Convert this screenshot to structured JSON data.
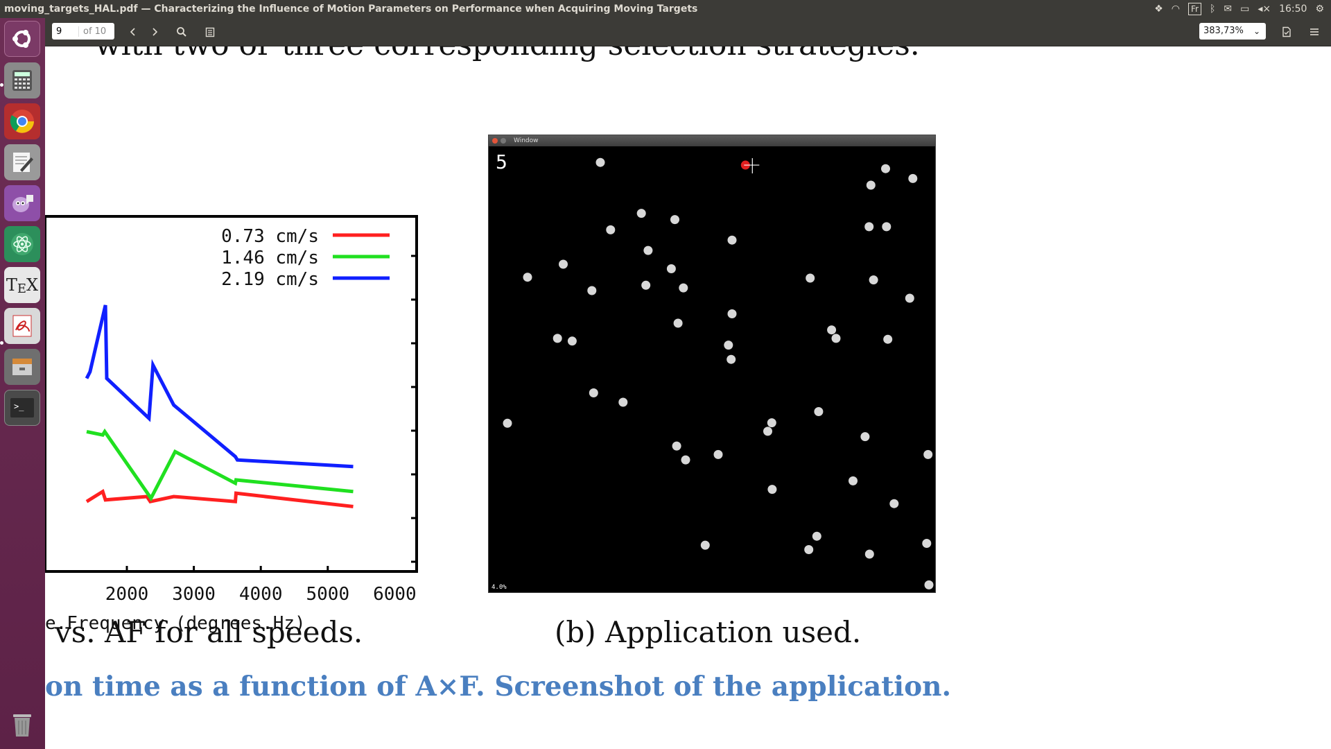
{
  "window": {
    "title": "moving_targets_HAL.pdf — Characterizing the Influence of Motion Parameters on Performance when Acquiring Moving Targets"
  },
  "indicators": {
    "keyboard": "Fr",
    "clock": "16:50"
  },
  "toolbar": {
    "page_current": "9",
    "page_total": "of 10",
    "zoom": "383,73%"
  },
  "launcher": {
    "items": [
      "ubuntu-dash",
      "calculator",
      "chrome",
      "text-editor",
      "pidgin",
      "atom",
      "texmaker",
      "pdf-reader",
      "file-archive",
      "terminal",
      "trash"
    ]
  },
  "document": {
    "line_top": "with two or three corresponding selection strategies.",
    "caption_a": "vs. AF for all speeds.",
    "caption_b": "(b) Application used.",
    "caption_main": "on time as a function of A×F. Screenshot of the application."
  },
  "chart_data": {
    "type": "line",
    "xlabel": "e.Frequency (degrees.Hz)",
    "x_ticks": [
      "2000",
      "3000",
      "4000",
      "5000",
      "6000"
    ],
    "xlim": [
      1400,
      6000
    ],
    "series": [
      {
        "name": "0.73 cm/s",
        "color": "#ff2020",
        "points": [
          [
            1400,
            0.21
          ],
          [
            1640,
            0.24
          ],
          [
            1680,
            0.215
          ],
          [
            2300,
            0.225
          ],
          [
            2350,
            0.21
          ],
          [
            2700,
            0.225
          ],
          [
            3620,
            0.21
          ],
          [
            3630,
            0.235
          ],
          [
            5380,
            0.195
          ]
        ]
      },
      {
        "name": "1.46 cm/s",
        "color": "#20e020",
        "points": [
          [
            1400,
            0.42
          ],
          [
            1640,
            0.41
          ],
          [
            1670,
            0.42
          ],
          [
            2360,
            0.22
          ],
          [
            2720,
            0.36
          ],
          [
            3620,
            0.265
          ],
          [
            3630,
            0.275
          ],
          [
            5380,
            0.24
          ]
        ]
      },
      {
        "name": "2.19 cm/s",
        "color": "#1020ff",
        "points": [
          [
            1400,
            0.58
          ],
          [
            1450,
            0.6
          ],
          [
            1680,
            0.8
          ],
          [
            1700,
            0.58
          ],
          [
            2330,
            0.46
          ],
          [
            2390,
            0.62
          ],
          [
            2700,
            0.5
          ],
          [
            3620,
            0.345
          ],
          [
            3650,
            0.335
          ],
          [
            5380,
            0.315
          ]
        ]
      }
    ],
    "legend": "top-right"
  },
  "app": {
    "window_title": "Window",
    "score": "5",
    "status": "4.0%",
    "target_color": "#e02020",
    "distractor_color": "#d8d8d8",
    "target": [
      0.575,
      0.042
    ],
    "dots": [
      [
        0.25,
        0.036
      ],
      [
        0.889,
        0.05
      ],
      [
        0.95,
        0.072
      ],
      [
        0.856,
        0.087
      ],
      [
        0.852,
        0.18
      ],
      [
        0.891,
        0.18
      ],
      [
        0.342,
        0.15
      ],
      [
        0.417,
        0.164
      ],
      [
        0.273,
        0.187
      ],
      [
        0.545,
        0.21
      ],
      [
        0.357,
        0.233
      ],
      [
        0.167,
        0.264
      ],
      [
        0.409,
        0.274
      ],
      [
        0.087,
        0.293
      ],
      [
        0.72,
        0.295
      ],
      [
        0.862,
        0.299
      ],
      [
        0.352,
        0.311
      ],
      [
        0.436,
        0.317
      ],
      [
        0.231,
        0.323
      ],
      [
        0.943,
        0.34
      ],
      [
        0.545,
        0.375
      ],
      [
        0.424,
        0.396
      ],
      [
        0.768,
        0.411
      ],
      [
        0.154,
        0.43
      ],
      [
        0.187,
        0.436
      ],
      [
        0.778,
        0.43
      ],
      [
        0.894,
        0.432
      ],
      [
        0.537,
        0.445
      ],
      [
        0.543,
        0.477
      ],
      [
        0.235,
        0.552
      ],
      [
        0.301,
        0.573
      ],
      [
        0.739,
        0.594
      ],
      [
        0.042,
        0.62
      ],
      [
        0.634,
        0.619
      ],
      [
        0.625,
        0.638
      ],
      [
        0.843,
        0.65
      ],
      [
        0.421,
        0.671
      ],
      [
        0.441,
        0.702
      ],
      [
        0.514,
        0.69
      ],
      [
        0.984,
        0.69
      ],
      [
        0.816,
        0.749
      ],
      [
        0.635,
        0.768
      ],
      [
        0.908,
        0.8
      ],
      [
        0.735,
        0.873
      ],
      [
        0.485,
        0.893
      ],
      [
        0.717,
        0.903
      ],
      [
        0.853,
        0.913
      ],
      [
        0.981,
        0.889
      ],
      [
        0.986,
        0.982
      ]
    ]
  }
}
